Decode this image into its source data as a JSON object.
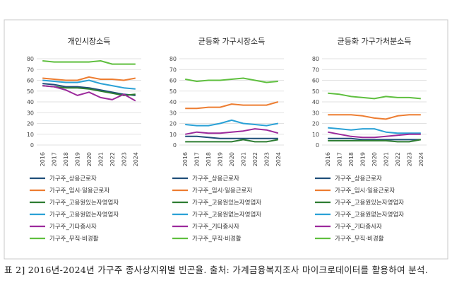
{
  "caption": "표 2] 2016년-2024년 가구주 종사상지위별 빈곤율. 출처: 가계금융복지조사 마이크로데이터를 활용하여 분석.",
  "colors": {
    "상용근로자": "#1f4e79",
    "임시일용근로자": "#ed7d31",
    "고용원있는자영업자": "#2e7d32",
    "고용원없는자영업자": "#2aa1d6",
    "기타종사자": "#9c2a9c",
    "무직비경활": "#5fbf3f"
  },
  "chart_data": [
    {
      "type": "line",
      "title": "개인시장소득",
      "x": [
        "2016",
        "2017",
        "2018",
        "2019",
        "2020",
        "2021",
        "2022",
        "2023",
        "2024"
      ],
      "ylim": [
        0,
        80
      ],
      "yticks": [
        0,
        10,
        20,
        30,
        40,
        50,
        60,
        70,
        80
      ],
      "grid": true,
      "legend": "bottom",
      "series": [
        {
          "name": "가구주_상용근로자",
          "color_key": "상용근로자",
          "values": [
            57,
            56,
            54,
            54,
            53,
            51,
            49,
            47,
            46
          ]
        },
        {
          "name": "가구주_임시·일용근로자",
          "color_key": "임시일용근로자",
          "values": [
            62,
            61,
            60,
            60,
            63,
            61,
            61,
            60,
            62
          ]
        },
        {
          "name": "가구주_고용원있는자영업자",
          "color_key": "고용원있는자영업자",
          "values": [
            55,
            54,
            53,
            53,
            52,
            50,
            48,
            46,
            47
          ]
        },
        {
          "name": "가구주_고용원없는자영업자",
          "color_key": "고용원없는자영업자",
          "values": [
            60,
            59,
            58,
            58,
            60,
            57,
            55,
            53,
            52
          ]
        },
        {
          "name": "가구주_기타종사자",
          "color_key": "기타종사자",
          "values": [
            55,
            54,
            51,
            46,
            49,
            44,
            42,
            47,
            41
          ]
        },
        {
          "name": "가구주_무직·비경활",
          "color_key": "무직비경활",
          "values": [
            78,
            77,
            77,
            77,
            77,
            78,
            75,
            75,
            75
          ]
        }
      ]
    },
    {
      "type": "line",
      "title": "균등화 가구시장소득",
      "x": [
        "2016",
        "2017",
        "2018",
        "2019",
        "2020",
        "2021",
        "2022",
        "2023",
        "2024"
      ],
      "ylim": [
        0,
        80
      ],
      "yticks": [
        0,
        10,
        20,
        30,
        40,
        50,
        60,
        70,
        80
      ],
      "grid": true,
      "legend": "bottom",
      "series": [
        {
          "name": "가구주_상용근로자",
          "color_key": "상용근로자",
          "values": [
            8,
            8,
            7,
            6,
            6,
            6,
            6,
            6,
            6
          ]
        },
        {
          "name": "가구주_임시·일용근로자",
          "color_key": "임시일용근로자",
          "values": [
            34,
            34,
            35,
            35,
            38,
            37,
            37,
            37,
            40
          ]
        },
        {
          "name": "가구주_고용원있는자영업자",
          "color_key": "고용원있는자영업자",
          "values": [
            3,
            3,
            3,
            3,
            3,
            5,
            3,
            3,
            5
          ]
        },
        {
          "name": "가구주_고용원없는자영업자",
          "color_key": "고용원없는자영업자",
          "values": [
            19,
            18,
            18,
            20,
            23,
            20,
            19,
            18,
            20
          ]
        },
        {
          "name": "가구주_기타종사자",
          "color_key": "기타종사자",
          "values": [
            10,
            12,
            11,
            11,
            12,
            13,
            15,
            14,
            11
          ]
        },
        {
          "name": "가구주_무직·비경활",
          "color_key": "무직비경활",
          "values": [
            61,
            59,
            60,
            60,
            61,
            62,
            60,
            58,
            59
          ]
        }
      ]
    },
    {
      "type": "line",
      "title": "균등화 가구가처분소득",
      "x": [
        "2016",
        "2017",
        "2018",
        "2019",
        "2020",
        "2021",
        "2022",
        "2023",
        "2024"
      ],
      "ylim": [
        0,
        80
      ],
      "yticks": [
        0,
        10,
        20,
        30,
        40,
        50,
        60,
        70,
        80
      ],
      "grid": true,
      "legend": "bottom",
      "series": [
        {
          "name": "가구주_상용근로자",
          "color_key": "상용근로자",
          "values": [
            6,
            6,
            6,
            5,
            5,
            5,
            5,
            5,
            5
          ]
        },
        {
          "name": "가구주_임시·일용근로자",
          "color_key": "임시일용근로자",
          "values": [
            28,
            28,
            28,
            27,
            25,
            24,
            27,
            28,
            28
          ]
        },
        {
          "name": "가구주_고용원있는자영업자",
          "color_key": "고용원있는자영업자",
          "values": [
            4,
            4,
            4,
            4,
            4,
            4,
            3,
            3,
            5
          ]
        },
        {
          "name": "가구주_고용원없는자영업자",
          "color_key": "고용원없는자영업자",
          "values": [
            16,
            15,
            14,
            15,
            15,
            12,
            11,
            11,
            11
          ]
        },
        {
          "name": "가구주_기타종사자",
          "color_key": "기타종사자",
          "values": [
            12,
            10,
            8,
            7,
            7,
            8,
            9,
            10,
            10
          ]
        },
        {
          "name": "가구주_무직·비경활",
          "color_key": "무직비경활",
          "values": [
            48,
            47,
            45,
            44,
            43,
            45,
            44,
            44,
            43
          ]
        }
      ]
    }
  ]
}
